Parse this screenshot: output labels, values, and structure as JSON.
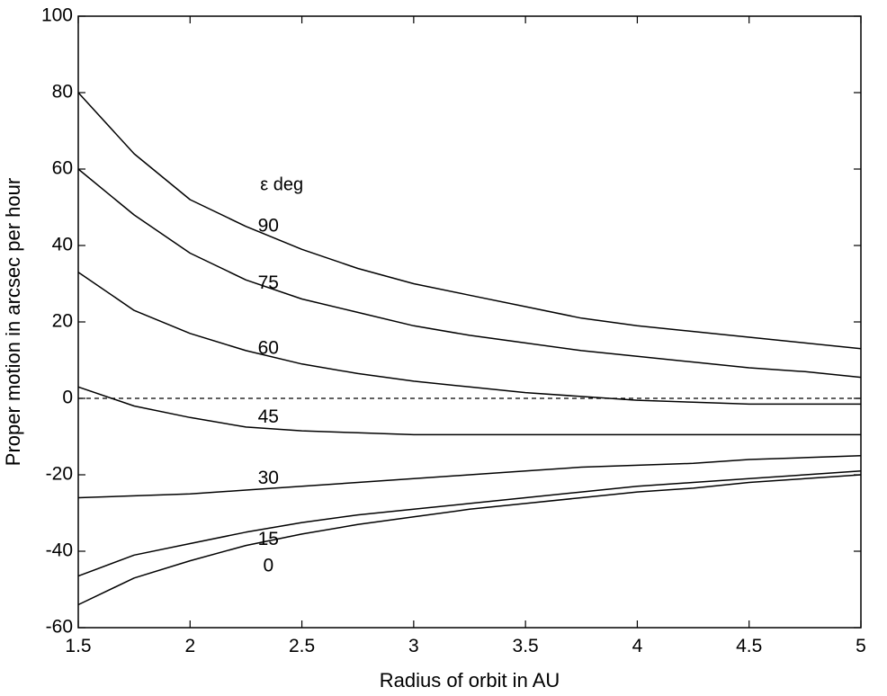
{
  "chart_data": {
    "type": "line",
    "xlabel": "Radius of orbit in AU",
    "ylabel": "Proper motion in arcsec per hour",
    "xlim": [
      1.5,
      5
    ],
    "ylim": [
      -60,
      100
    ],
    "xticks": [
      1.5,
      2,
      2.5,
      3,
      3.5,
      4,
      4.5,
      5
    ],
    "yticks": [
      -60,
      -40,
      -20,
      0,
      20,
      40,
      60,
      80,
      100
    ],
    "x_tick_labels": [
      "1.5",
      "2",
      "2.5",
      "3",
      "3.5",
      "4",
      "4.5",
      "5"
    ],
    "y_tick_labels": [
      "-60",
      "-40",
      "-20",
      "0",
      "20",
      "40",
      "60",
      "80",
      "100"
    ],
    "legend_title": "ε deg",
    "grid": false,
    "zero_line": {
      "y": 0,
      "style": "dashed"
    },
    "x": [
      1.5,
      1.75,
      2.0,
      2.25,
      2.5,
      2.75,
      3.0,
      3.25,
      3.5,
      3.75,
      4.0,
      4.25,
      4.5,
      4.75,
      5.0
    ],
    "series": [
      {
        "name": "90",
        "values": [
          80,
          64,
          52,
          45,
          39,
          34,
          30,
          27,
          24,
          21,
          19,
          17.5,
          16,
          14.5,
          13
        ]
      },
      {
        "name": "75",
        "values": [
          60,
          48,
          38,
          31,
          26,
          22.5,
          19,
          16.5,
          14.5,
          12.5,
          11,
          9.5,
          8,
          7,
          5.5
        ]
      },
      {
        "name": "60",
        "values": [
          33,
          23,
          17,
          12.5,
          9,
          6.5,
          4.5,
          3,
          1.5,
          0.5,
          -0.5,
          -1,
          -1.5,
          -1.5,
          -1.5
        ]
      },
      {
        "name": "45",
        "values": [
          3,
          -2,
          -5,
          -7.5,
          -8.5,
          -9,
          -9.5,
          -9.5,
          -9.5,
          -9.5,
          -9.5,
          -9.5,
          -9.5,
          -9.5,
          -9.5
        ]
      },
      {
        "name": "30",
        "values": [
          -26,
          -25.5,
          -25,
          -24,
          -23,
          -22,
          -21,
          -20,
          -19,
          -18,
          -17.5,
          -17,
          -16,
          -15.5,
          -15
        ]
      },
      {
        "name": "15",
        "values": [
          -46.5,
          -41,
          -38,
          -35,
          -32.5,
          -30.5,
          -29,
          -27.5,
          -26,
          -24.5,
          -23,
          -22,
          -21,
          -20,
          -19
        ]
      },
      {
        "name": "0",
        "values": [
          -54,
          -47,
          -42.5,
          -38.5,
          -35.5,
          -33,
          -31,
          -29,
          -27.5,
          -26,
          -24.5,
          -23.5,
          -22,
          -21,
          -20
        ]
      }
    ],
    "curve_labels": [
      {
        "text": "90",
        "x": 2.35,
        "y": 45
      },
      {
        "text": "75",
        "x": 2.35,
        "y": 30
      },
      {
        "text": "60",
        "x": 2.35,
        "y": 13
      },
      {
        "text": "45",
        "x": 2.35,
        "y": -5
      },
      {
        "text": "30",
        "x": 2.35,
        "y": -21
      },
      {
        "text": "15",
        "x": 2.35,
        "y": -37
      },
      {
        "text": "0",
        "x": 2.35,
        "y": -44
      }
    ],
    "legend_title_pos": {
      "x": 2.41,
      "y": 54.5
    }
  }
}
